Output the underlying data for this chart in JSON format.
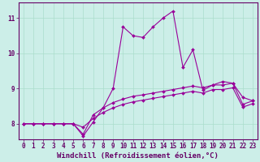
{
  "xlabel": "Windchill (Refroidissement éolien,°C)",
  "bg_color": "#cceee8",
  "line_color": "#990099",
  "grid_color": "#aaddcc",
  "axis_color": "#660066",
  "text_color": "#660066",
  "xlim": [
    -0.5,
    23.5
  ],
  "ylim": [
    7.55,
    11.45
  ],
  "yticks": [
    8,
    9,
    10,
    11
  ],
  "xticks": [
    0,
    1,
    2,
    3,
    4,
    5,
    6,
    7,
    8,
    9,
    10,
    11,
    12,
    13,
    14,
    15,
    16,
    17,
    18,
    19,
    20,
    21,
    22,
    23
  ],
  "series1_x": [
    0,
    1,
    2,
    3,
    4,
    5,
    6,
    7,
    8,
    9,
    10,
    11,
    12,
    13,
    14,
    15,
    16,
    17,
    18,
    19,
    20,
    21,
    22,
    23
  ],
  "series1_y": [
    8.0,
    8.0,
    8.0,
    8.0,
    8.0,
    8.0,
    7.65,
    8.05,
    8.45,
    9.0,
    10.75,
    10.5,
    10.45,
    10.75,
    11.0,
    11.2,
    9.6,
    10.1,
    8.95,
    9.1,
    9.2,
    9.15,
    8.75,
    8.65
  ],
  "series2_x": [
    0,
    1,
    2,
    3,
    4,
    5,
    6,
    7,
    8,
    9,
    10,
    11,
    12,
    13,
    14,
    15,
    16,
    17,
    18,
    19,
    20,
    21,
    22,
    23
  ],
  "series2_y": [
    8.0,
    8.0,
    8.0,
    8.0,
    8.0,
    8.0,
    7.7,
    8.25,
    8.45,
    8.6,
    8.7,
    8.78,
    8.82,
    8.87,
    8.92,
    8.97,
    9.02,
    9.07,
    9.02,
    9.1,
    9.1,
    9.15,
    8.55,
    8.65
  ],
  "series3_x": [
    0,
    1,
    2,
    3,
    4,
    5,
    6,
    7,
    8,
    9,
    10,
    11,
    12,
    13,
    14,
    15,
    16,
    17,
    18,
    19,
    20,
    21,
    22,
    23
  ],
  "series3_y": [
    8.0,
    8.0,
    8.0,
    8.0,
    8.0,
    8.0,
    7.9,
    8.15,
    8.32,
    8.45,
    8.55,
    8.62,
    8.67,
    8.72,
    8.77,
    8.82,
    8.87,
    8.92,
    8.87,
    8.97,
    8.97,
    9.02,
    8.47,
    8.57
  ],
  "marker": "D",
  "markersize": 2.0,
  "linewidth": 0.8,
  "tick_fontsize": 5.5,
  "xlabel_fontsize": 6.5
}
